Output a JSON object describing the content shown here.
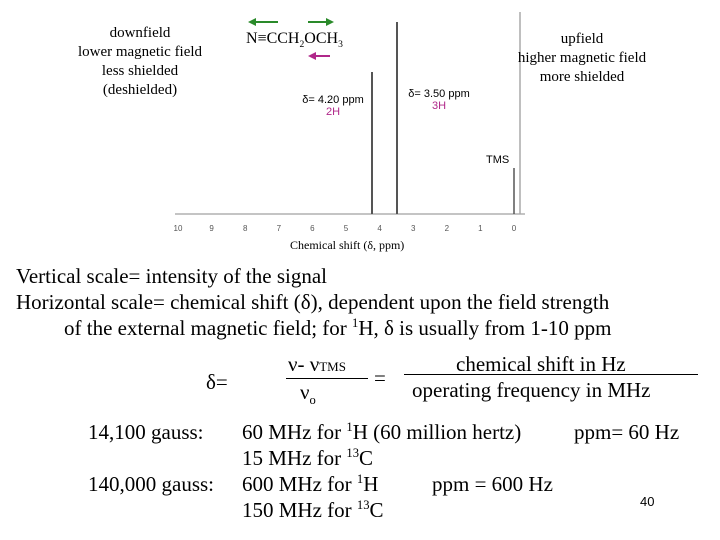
{
  "left_note": [
    "downfield",
    "lower magnetic field",
    "less shielded",
    "(deshielded)"
  ],
  "right_note": [
    "upfield",
    "higher magnetic field",
    "more shielded"
  ],
  "structure": [
    "N≡CCH",
    "2",
    "OCH",
    "3"
  ],
  "peak_a": {
    "shift": "δ= 4.20 ppm",
    "protons": "2H"
  },
  "peak_b": {
    "shift": "δ= 3.50 ppm",
    "protons": "3H"
  },
  "reference": "TMS",
  "axis_ticks": [
    "10",
    "9",
    "8",
    "7",
    "6",
    "5",
    "4",
    "3",
    "2",
    "1",
    "0"
  ],
  "axis_label": "Chemical shift (δ, ppm)",
  "line1": "Vertical scale= intensity of the signal",
  "line2": "Horizontal scale= chemical shift (δ), dependent upon the field strength",
  "line3": [
    "of the external magnetic field; for ",
    "1",
    "H, δ is usually from 1-10 ppm"
  ],
  "formula": {
    "lhs": "δ=",
    "num": [
      "ν- ν",
      "TMS"
    ],
    "den": [
      "ν",
      "o"
    ],
    "eq": "=",
    "num2": "chemical shift in Hz",
    "den2": "operating frequency in MHz"
  },
  "freq": {
    "r1": [
      "14,100 gauss:",
      "60 MHz for ",
      "1",
      "H (60 million hertz)",
      "ppm= 60 Hz"
    ],
    "r2": [
      "15 MHz for ",
      "13",
      "C"
    ],
    "r3": [
      "140,000 gauss:",
      "600 MHz for ",
      "1",
      "H",
      "ppm = 600 Hz"
    ],
    "r4": [
      "150 MHz for ",
      "13",
      "C"
    ]
  },
  "page_number": "40"
}
